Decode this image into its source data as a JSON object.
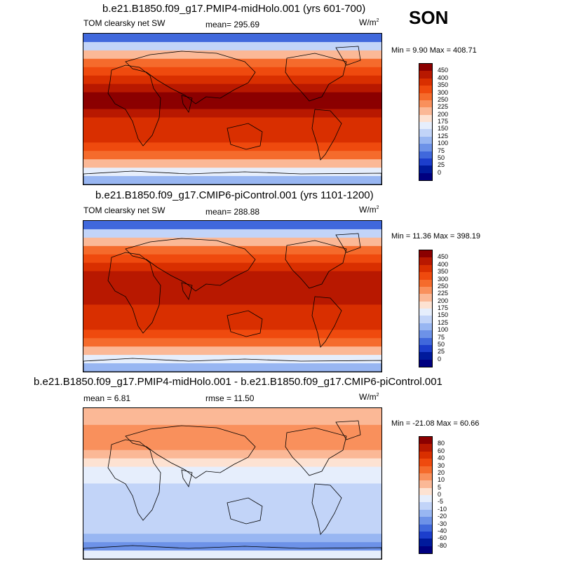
{
  "season": "SON",
  "panels": [
    {
      "title": "b.e21.B1850.f09_g17.PMIP4-midHolo.001 (yrs 601-700)",
      "left_label": "TOM clearsky net SW",
      "center_label": "mean= 295.69",
      "units": "W/m",
      "units_sup": "2",
      "minmax": "Min =   9.90 Max = 408.71",
      "colorbar_labels": [
        "450",
        "400",
        "350",
        "300",
        "250",
        "225",
        "200",
        "175",
        "150",
        "125",
        "100",
        "75",
        "50",
        "25",
        "0"
      ]
    },
    {
      "title": "b.e21.B1850.f09_g17.CMIP6-piControl.001 (yrs 1101-1200)",
      "left_label": "TOM clearsky net SW",
      "center_label": "mean= 288.88",
      "units": "W/m",
      "units_sup": "2",
      "minmax": "Min =  11.36 Max = 398.19",
      "colorbar_labels": [
        "450",
        "400",
        "350",
        "300",
        "250",
        "225",
        "200",
        "175",
        "150",
        "125",
        "100",
        "75",
        "50",
        "25",
        "0"
      ]
    },
    {
      "title": "b.e21.B1850.f09_g17.PMIP4-midHolo.001 - b.e21.B1850.f09_g17.CMIP6-piControl.001",
      "left_label": "mean =   6.81",
      "center_label": "rmse =  11.50",
      "units": "W/m",
      "units_sup": "2",
      "minmax": "Min = -21.08 Max =  60.66",
      "colorbar_labels": [
        "80",
        "60",
        "40",
        "30",
        "20",
        "10",
        "5",
        "0",
        "-5",
        "-10",
        "-20",
        "-30",
        "-40",
        "-60",
        "-80"
      ]
    }
  ],
  "colors": {
    "abs_scale": [
      "#8b0000",
      "#b81800",
      "#d92f00",
      "#ef4a0e",
      "#f56b2c",
      "#f9905c",
      "#fbb896",
      "#fde2d2",
      "#e6eefc",
      "#c2d4f8",
      "#98b6f2",
      "#6d92e8",
      "#4068dc",
      "#1c3ecc",
      "#001a9c",
      "#000080"
    ],
    "diff_scale": [
      "#8b0000",
      "#b81800",
      "#d92f00",
      "#ef4a0e",
      "#f56b2c",
      "#f9905c",
      "#fbb896",
      "#fde2d2",
      "#e6eefc",
      "#c2d4f8",
      "#98b6f2",
      "#6d92e8",
      "#4068dc",
      "#1c3ecc",
      "#001a9c",
      "#000080"
    ]
  },
  "map_bands": {
    "panel1": [
      3,
      6,
      9,
      11,
      12,
      13,
      14,
      15,
      15,
      14,
      13,
      13,
      13,
      12,
      11,
      9,
      7,
      5
    ],
    "panel2": [
      3,
      6,
      9,
      11,
      12,
      13,
      14,
      14,
      14,
      14,
      13,
      13,
      13,
      12,
      11,
      9,
      7,
      5
    ],
    "panel3": [
      9,
      9,
      10,
      10,
      10,
      9,
      8,
      7,
      7,
      6,
      6,
      6,
      6,
      6,
      6,
      5,
      4,
      7
    ]
  }
}
